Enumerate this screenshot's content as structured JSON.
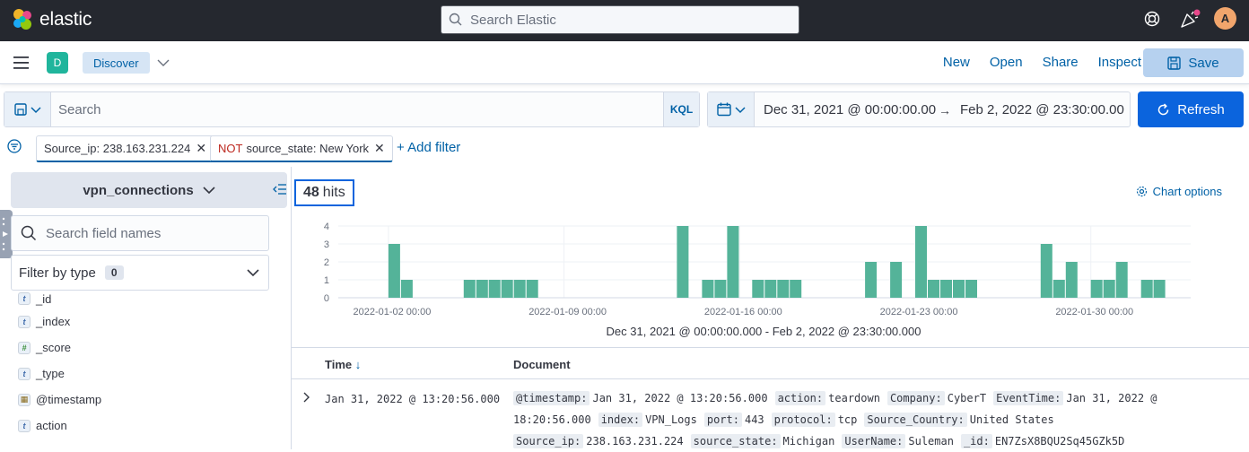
{
  "app": {
    "brand": "elastic",
    "avatar_initial": "A"
  },
  "global_search": {
    "placeholder": "Search Elastic"
  },
  "subheader": {
    "space_initial": "D",
    "breadcrumb": "Discover",
    "links": [
      "New",
      "Open",
      "Share",
      "Inspect"
    ],
    "save_label": "Save"
  },
  "query": {
    "placeholder": "Search",
    "language": "KQL"
  },
  "date_range": {
    "start": "Dec 31, 2021 @ 00:00:00.00",
    "end": "Feb 2, 2022 @ 23:30:00.00",
    "refresh_label": "Refresh"
  },
  "filters": [
    {
      "negated": false,
      "text": "Source_ip: 238.163.231.224"
    },
    {
      "negated": true,
      "not_label": "NOT",
      "text": "source_state: New York"
    }
  ],
  "add_filter_label": "+ Add filter",
  "sidebar": {
    "index_pattern": "vpn_connections",
    "field_search_placeholder": "Search field names",
    "filter_by_type_label": "Filter by type",
    "filter_by_type_count": "0",
    "fields": [
      {
        "name": "_id",
        "type": "string",
        "type_glyph": "t"
      },
      {
        "name": "_index",
        "type": "string",
        "type_glyph": "t"
      },
      {
        "name": "_score",
        "type": "number",
        "type_glyph": "#"
      },
      {
        "name": "_type",
        "type": "string",
        "type_glyph": "t"
      },
      {
        "name": "@timestamp",
        "type": "date",
        "type_glyph": "▦"
      },
      {
        "name": "action",
        "type": "string",
        "type_glyph": "t"
      }
    ]
  },
  "hits": {
    "count": "48",
    "label": "hits"
  },
  "chart_options_label": "Chart options",
  "chart_data": {
    "type": "bar",
    "color": "#54b399",
    "x_domain": [
      "2021-12-31 00:00",
      "2022-02-02 23:30"
    ],
    "x_tick_labels": [
      "2022-01-02 00:00",
      "2022-01-09 00:00",
      "2022-01-16 00:00",
      "2022-01-23 00:00",
      "2022-01-30 00:00"
    ],
    "y_ticks": [
      0,
      1,
      2,
      3,
      4
    ],
    "ylim": [
      0,
      4
    ],
    "bars": [
      {
        "t": "2022-01-02 00:00",
        "count": 3
      },
      {
        "t": "2022-01-02 12:00",
        "count": 1
      },
      {
        "t": "2022-01-05 00:00",
        "count": 1
      },
      {
        "t": "2022-01-05 12:00",
        "count": 1
      },
      {
        "t": "2022-01-06 00:00",
        "count": 1
      },
      {
        "t": "2022-01-06 12:00",
        "count": 1
      },
      {
        "t": "2022-01-07 00:00",
        "count": 1
      },
      {
        "t": "2022-01-07 12:00",
        "count": 1
      },
      {
        "t": "2022-01-13 12:00",
        "count": 4
      },
      {
        "t": "2022-01-14 12:00",
        "count": 1
      },
      {
        "t": "2022-01-15 00:00",
        "count": 1
      },
      {
        "t": "2022-01-15 12:00",
        "count": 4
      },
      {
        "t": "2022-01-16 12:00",
        "count": 1
      },
      {
        "t": "2022-01-17 00:00",
        "count": 1
      },
      {
        "t": "2022-01-17 12:00",
        "count": 1
      },
      {
        "t": "2022-01-18 00:00",
        "count": 1
      },
      {
        "t": "2022-01-21 00:00",
        "count": 2
      },
      {
        "t": "2022-01-22 00:00",
        "count": 2
      },
      {
        "t": "2022-01-23 00:00",
        "count": 4
      },
      {
        "t": "2022-01-23 12:00",
        "count": 1
      },
      {
        "t": "2022-01-24 00:00",
        "count": 1
      },
      {
        "t": "2022-01-24 12:00",
        "count": 1
      },
      {
        "t": "2022-01-25 00:00",
        "count": 1
      },
      {
        "t": "2022-01-28 00:00",
        "count": 3
      },
      {
        "t": "2022-01-28 12:00",
        "count": 1
      },
      {
        "t": "2022-01-29 00:00",
        "count": 2
      },
      {
        "t": "2022-01-30 00:00",
        "count": 1
      },
      {
        "t": "2022-01-30 12:00",
        "count": 1
      },
      {
        "t": "2022-01-31 00:00",
        "count": 2
      },
      {
        "t": "2022-02-01 00:00",
        "count": 1
      },
      {
        "t": "2022-02-01 12:00",
        "count": 1
      }
    ],
    "range_label": "Dec 31, 2021 @ 00:00:00.000 - Feb 2, 2022 @ 23:30:00.000"
  },
  "table": {
    "columns": [
      "Time",
      "Document"
    ],
    "rows": [
      {
        "time": "Jan 31, 2022 @ 13:20:56.000",
        "doc_lines": [
          [
            [
              "@timestamp:",
              "Jan 31, 2022 @ 13:20:56.000"
            ],
            [
              "action:",
              "teardown"
            ],
            [
              "Company:",
              "CyberT"
            ],
            [
              "EventTime:",
              "Jan 31, 2022 @"
            ]
          ],
          [
            [
              "",
              "18:20:56.000"
            ],
            [
              "index:",
              "VPN_Logs"
            ],
            [
              "port:",
              "443"
            ],
            [
              "protocol:",
              "tcp"
            ],
            [
              "Source_Country:",
              "United States"
            ]
          ],
          [
            [
              "Source_ip:",
              "238.163.231.224"
            ],
            [
              "source_state:",
              "Michigan"
            ],
            [
              "UserName:",
              "Suleman"
            ],
            [
              "_id:",
              "EN7ZsX8BQU2Sq45GZk5D"
            ]
          ]
        ]
      }
    ]
  }
}
